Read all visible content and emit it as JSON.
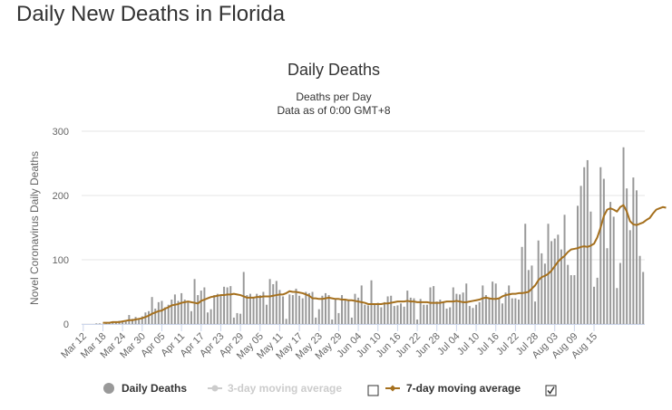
{
  "page": {
    "heading": "Daily New Deaths in Florida"
  },
  "chart_data": {
    "type": "bar",
    "title": "Daily Deaths",
    "subtitle_lines": [
      "Deaths per Day",
      "Data as of 0:00 GMT+8"
    ],
    "ylabel": "Novel Coronavirus Daily Deaths",
    "xlabel": "",
    "ylim": [
      0,
      300
    ],
    "y_ticks": [
      0,
      100,
      200,
      300
    ],
    "grid": true,
    "legend_position": "bottom",
    "x_start": "Mar 12",
    "x_tick_labels": [
      "Mar 12",
      "Mar 18",
      "Mar 24",
      "Mar 30",
      "Apr 05",
      "Apr 11",
      "Apr 17",
      "Apr 23",
      "Apr 29",
      "May 05",
      "May 11",
      "May 17",
      "May 23",
      "May 29",
      "Jun 04",
      "Jun 10",
      "Jun 16",
      "Jun 22",
      "Jun 28",
      "Jul 04",
      "Jul 10",
      "Jul 16",
      "Jul 22",
      "Jul 28",
      "Aug 03",
      "Aug 09",
      "Aug 15"
    ],
    "series": [
      {
        "name": "Daily Deaths",
        "kind": "bar",
        "color": "#999999",
        "visible": true,
        "values": [
          0,
          0,
          0,
          0,
          1,
          1,
          0,
          2,
          2,
          3,
          3,
          5,
          3,
          6,
          14,
          8,
          11,
          9,
          12,
          18,
          20,
          42,
          24,
          34,
          36,
          26,
          30,
          38,
          46,
          36,
          48,
          38,
          35,
          20,
          70,
          45,
          52,
          57,
          18,
          23,
          45,
          47,
          45,
          58,
          57,
          59,
          10,
          17,
          16,
          81,
          45,
          47,
          42,
          47,
          45,
          50,
          30,
          70,
          62,
          67,
          53,
          43,
          8,
          46,
          45,
          55,
          44,
          40,
          50,
          48,
          50,
          10,
          23,
          44,
          48,
          45,
          7,
          38,
          17,
          45,
          39,
          38,
          10,
          47,
          41,
          60,
          30,
          29,
          68,
          31,
          33,
          26,
          34,
          43,
          44,
          28,
          29,
          32,
          27,
          52,
          41,
          40,
          7,
          39,
          30,
          30,
          57,
          59,
          35,
          38,
          33,
          24,
          26,
          57,
          47,
          46,
          49,
          63,
          28,
          25,
          30,
          34,
          60,
          45,
          40,
          66,
          63,
          41,
          32,
          49,
          60,
          40,
          40,
          38,
          120,
          156,
          84,
          91,
          35,
          130,
          110,
          94,
          156,
          129,
          133,
          139,
          116,
          170,
          92,
          76,
          76,
          184,
          215,
          244,
          255,
          175,
          58,
          72,
          244,
          226,
          118,
          190,
          167,
          56,
          95,
          275,
          211,
          146,
          228,
          208,
          106,
          81
        ]
      },
      {
        "name": "3-day moving average",
        "kind": "line",
        "color": "#cccccc",
        "visible": false
      },
      {
        "name": "7-day moving average",
        "kind": "line",
        "color": "#a5701e",
        "visible": true,
        "start_index": 6,
        "values": [
          2,
          2,
          2,
          3,
          3,
          3,
          4,
          5,
          6,
          6,
          7,
          8,
          9,
          11,
          13,
          16,
          18,
          20,
          21,
          24,
          26,
          29,
          30,
          31,
          33,
          34,
          35,
          34,
          33,
          32,
          36,
          38,
          40,
          42,
          43,
          44,
          45,
          45,
          46,
          46,
          47,
          46,
          45,
          43,
          41,
          41,
          41,
          42,
          42,
          43,
          43,
          43,
          44,
          45,
          46,
          46,
          48,
          51,
          50,
          50,
          49,
          48,
          46,
          44,
          40,
          40,
          39,
          39,
          40,
          41,
          40,
          39,
          39,
          38,
          38,
          37,
          37,
          36,
          35,
          34,
          33,
          31,
          31,
          31,
          31,
          31,
          32,
          32,
          33,
          34,
          35,
          35,
          35,
          36,
          35,
          35,
          34,
          34,
          34,
          34,
          33,
          33,
          33,
          33,
          34,
          35,
          35,
          35,
          36,
          35,
          34,
          34,
          35,
          36,
          37,
          38,
          40,
          41,
          40,
          39,
          39,
          40,
          43,
          45,
          46,
          47,
          47,
          48,
          48,
          49,
          50,
          55,
          60,
          68,
          73,
          75,
          78,
          83,
          90,
          97,
          102,
          106,
          112,
          116,
          117,
          118,
          120,
          121,
          120,
          122,
          125,
          135,
          150,
          168,
          178,
          180,
          178,
          175,
          182,
          185,
          175,
          160,
          155,
          154,
          156,
          158,
          162,
          165,
          172,
          178,
          180,
          182,
          181
        ]
      }
    ]
  },
  "legend": {
    "items": [
      {
        "label": "Daily Deaths",
        "color": "#999999"
      },
      {
        "label": "3-day moving average",
        "color": "#cccccc"
      },
      {
        "label": "7-day moving average",
        "color": "#a5701e"
      }
    ]
  }
}
